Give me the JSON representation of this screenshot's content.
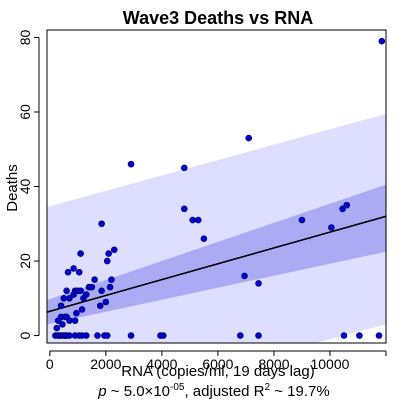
{
  "chart_data": {
    "type": "scatter",
    "title": "Wave3 Deaths vs RNA",
    "xlabel": "RNA (copies/ml, 19 days lag)",
    "ylabel": "Deaths",
    "subtitle": {
      "p_label": "p",
      "p_value_text": " ~ 5.0×10",
      "p_exponent": "-05",
      "r2_prefix": ", adjusted R",
      "r2_exponent": "2",
      "r2_value_text": " ~ 19.7%"
    },
    "xlim": [
      -100,
      12000
    ],
    "ylim": [
      -2,
      82
    ],
    "x_ticks": [
      0,
      2000,
      4000,
      6000,
      8000,
      10000,
      12000
    ],
    "x_tick_labels": [
      "0",
      "2000",
      "4000",
      "6000",
      "8000",
      "10000",
      ""
    ],
    "y_ticks": [
      0,
      20,
      40,
      60,
      80
    ],
    "y_tick_labels": [
      "0",
      "20",
      "40",
      "60",
      "80"
    ],
    "grid": false,
    "colors": {
      "point_fill": "#0000cc",
      "point_stroke": "#00005a",
      "prediction_band": "#dedeff",
      "confidence_band": "#aaaaf5",
      "fit_line": "#000000"
    },
    "fit_line": {
      "x": [
        -100,
        12000
      ],
      "y": [
        6.3,
        32.0
      ]
    },
    "confidence_band": {
      "x": [
        -100,
        12000
      ],
      "lower": [
        3.0,
        22.5
      ],
      "upper": [
        9.5,
        40.5
      ]
    },
    "prediction_band": {
      "x": [
        -100,
        12000
      ],
      "lower": [
        -21.0,
        3.0
      ],
      "upper": [
        34.5,
        59.5
      ]
    },
    "points": [
      {
        "x": 200,
        "y": 0
      },
      {
        "x": 300,
        "y": 0
      },
      {
        "x": 350,
        "y": 0
      },
      {
        "x": 400,
        "y": 0
      },
      {
        "x": 500,
        "y": 0
      },
      {
        "x": 550,
        "y": 0
      },
      {
        "x": 600,
        "y": 0
      },
      {
        "x": 700,
        "y": 0
      },
      {
        "x": 900,
        "y": 0
      },
      {
        "x": 1050,
        "y": 0
      },
      {
        "x": 1150,
        "y": 0
      },
      {
        "x": 1300,
        "y": 0
      },
      {
        "x": 1700,
        "y": 0
      },
      {
        "x": 1950,
        "y": 0
      },
      {
        "x": 2050,
        "y": 0
      },
      {
        "x": 2900,
        "y": 0
      },
      {
        "x": 3950,
        "y": 0
      },
      {
        "x": 4050,
        "y": 0
      },
      {
        "x": 6800,
        "y": 0
      },
      {
        "x": 7450,
        "y": 0
      },
      {
        "x": 10500,
        "y": 0
      },
      {
        "x": 11050,
        "y": 0
      },
      {
        "x": 11750,
        "y": 0
      },
      {
        "x": 250,
        "y": 2
      },
      {
        "x": 300,
        "y": 4
      },
      {
        "x": 400,
        "y": 5
      },
      {
        "x": 450,
        "y": 3
      },
      {
        "x": 550,
        "y": 5
      },
      {
        "x": 600,
        "y": 5
      },
      {
        "x": 700,
        "y": 4
      },
      {
        "x": 900,
        "y": 4
      },
      {
        "x": 950,
        "y": 6
      },
      {
        "x": 400,
        "y": 8
      },
      {
        "x": 500,
        "y": 10
      },
      {
        "x": 600,
        "y": 12
      },
      {
        "x": 700,
        "y": 10
      },
      {
        "x": 850,
        "y": 11
      },
      {
        "x": 900,
        "y": 12
      },
      {
        "x": 1000,
        "y": 12
      },
      {
        "x": 1100,
        "y": 12
      },
      {
        "x": 1150,
        "y": 7
      },
      {
        "x": 1200,
        "y": 10
      },
      {
        "x": 1300,
        "y": 11
      },
      {
        "x": 1400,
        "y": 13
      },
      {
        "x": 1500,
        "y": 13
      },
      {
        "x": 1600,
        "y": 15
      },
      {
        "x": 1800,
        "y": 8
      },
      {
        "x": 1850,
        "y": 12
      },
      {
        "x": 2000,
        "y": 9
      },
      {
        "x": 2150,
        "y": 13
      },
      {
        "x": 2200,
        "y": 15
      },
      {
        "x": 650,
        "y": 17
      },
      {
        "x": 850,
        "y": 18
      },
      {
        "x": 1050,
        "y": 17
      },
      {
        "x": 1100,
        "y": 22
      },
      {
        "x": 2050,
        "y": 20
      },
      {
        "x": 2100,
        "y": 22
      },
      {
        "x": 2300,
        "y": 23
      },
      {
        "x": 1850,
        "y": 30
      },
      {
        "x": 2900,
        "y": 46
      },
      {
        "x": 4800,
        "y": 45
      },
      {
        "x": 4800,
        "y": 34
      },
      {
        "x": 5100,
        "y": 31
      },
      {
        "x": 5300,
        "y": 31
      },
      {
        "x": 5500,
        "y": 26
      },
      {
        "x": 6950,
        "y": 16
      },
      {
        "x": 7100,
        "y": 53
      },
      {
        "x": 7450,
        "y": 14
      },
      {
        "x": 9000,
        "y": 31
      },
      {
        "x": 10050,
        "y": 29
      },
      {
        "x": 10450,
        "y": 34
      },
      {
        "x": 10600,
        "y": 35
      },
      {
        "x": 11850,
        "y": 79
      }
    ]
  }
}
